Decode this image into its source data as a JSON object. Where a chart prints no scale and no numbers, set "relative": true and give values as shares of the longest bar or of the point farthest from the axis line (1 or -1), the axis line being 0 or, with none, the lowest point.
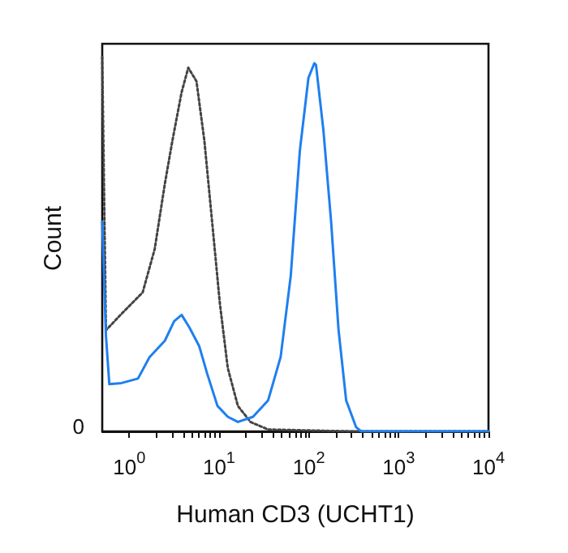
{
  "chart_data": {
    "type": "line",
    "xlabel": "Human CD3 (UCHT1)",
    "ylabel": "Count",
    "relative": true,
    "grid": false,
    "marker": "none",
    "log": "x",
    "annotations": [
      "0"
    ],
    "xlim": [
      0.5,
      10000
    ],
    "xticks": [
      {
        "value": 1,
        "label": "10$^{0}$"
      },
      {
        "value": 10,
        "label": "10$^{1}$"
      },
      {
        "value": 100,
        "label": "10$^{2}$"
      },
      {
        "value": 1000,
        "label": "10$^{3}$"
      },
      {
        "value": 10000,
        "label": "10$^{4}$"
      }
    ],
    "series": [
      {
        "color": "#444444",
        "line_style": "dotted",
        "x": [
          0.5,
          0.55,
          0.82,
          1.41,
          1.92,
          2.49,
          3.02,
          3.83,
          4.54,
          5.6,
          6.86,
          8.37,
          10.2,
          12.5,
          16.2,
          22.4,
          35.2,
          300,
          10000
        ],
        "values": [
          1.0,
          0.27,
          0.314,
          0.371,
          0.487,
          0.661,
          0.776,
          0.906,
          0.971,
          0.935,
          0.776,
          0.559,
          0.342,
          0.169,
          0.068,
          0.025,
          0.005,
          0,
          0
        ]
      },
      {
        "color": "#1f7fef",
        "line_style": "solid",
        "x": [
          0.5,
          0.55,
          0.6,
          0.82,
          1.25,
          1.68,
          2.49,
          3.16,
          3.83,
          4.68,
          6.0,
          7.35,
          9.6,
          12.5,
          16.2,
          23.9,
          35.2,
          48.5,
          62.8,
          79.3,
          98.9,
          115,
          120,
          145,
          177,
          214,
          260,
          336,
          383,
          10000
        ],
        "values": [
          0.56,
          0.255,
          0.126,
          0.129,
          0.141,
          0.198,
          0.242,
          0.294,
          0.311,
          0.277,
          0.228,
          0.155,
          0.068,
          0.039,
          0.025,
          0.039,
          0.083,
          0.199,
          0.415,
          0.749,
          0.944,
          0.983,
          0.979,
          0.805,
          0.559,
          0.271,
          0.083,
          0.011,
          0,
          0
        ]
      }
    ]
  }
}
